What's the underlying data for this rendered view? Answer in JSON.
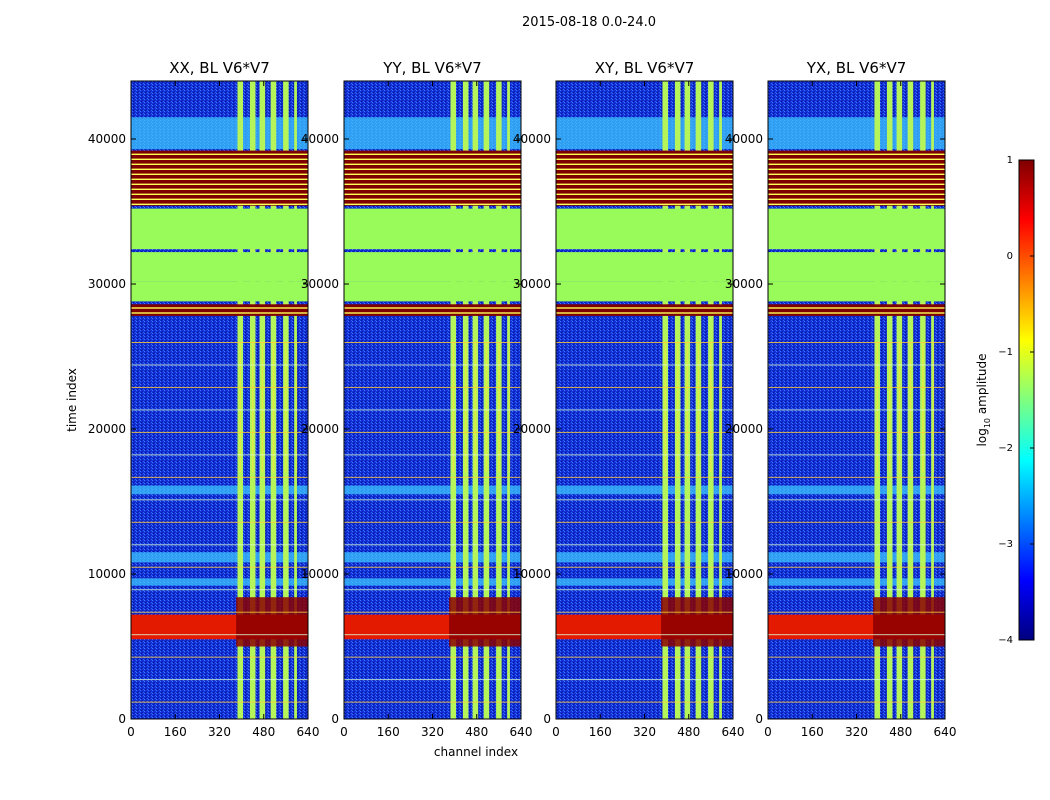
{
  "chart_data": {
    "type": "heatmap",
    "suptitle": "2015-08-18 0.0-24.0",
    "xlabel": "channel index",
    "ylabel": "time index",
    "xlim": [
      0,
      640
    ],
    "ylim": [
      0,
      44000
    ],
    "xticks": [
      "0",
      "160",
      "320",
      "480",
      "640"
    ],
    "xtick_values": [
      0,
      160,
      320,
      480,
      640
    ],
    "yticks": [
      "0",
      "10000",
      "20000",
      "30000",
      "40000"
    ],
    "ytick_values": [
      0,
      10000,
      20000,
      30000,
      40000
    ],
    "panels": [
      {
        "title": "XX, BL V6*V7",
        "id": "xx"
      },
      {
        "title": "YY, BL V6*V7",
        "id": "yy"
      },
      {
        "title": "XY, BL V6*V7",
        "id": "xy"
      },
      {
        "title": "YX, BL V6*V7",
        "id": "yx"
      }
    ],
    "colorbar": {
      "label": "log10 amplitude",
      "label_main": "log",
      "label_sub": "10",
      "label_rest": " amplitude",
      "range": [
        -4,
        1
      ],
      "ticks": [
        "1",
        "0",
        "−1",
        "−2",
        "−3",
        "−4"
      ],
      "tick_values": [
        1,
        0,
        -1,
        -2,
        -3,
        -4
      ],
      "colors": [
        "#00007f",
        "#0000ff",
        "#007fff",
        "#00ffff",
        "#7fff7f",
        "#ffff00",
        "#ff7f00",
        "#ff0000",
        "#7f0000"
      ]
    },
    "bands": {
      "flagged_green_ranges": [
        [
          28800,
          30200
        ],
        [
          30200,
          32200
        ],
        [
          32400,
          35200
        ]
      ],
      "dark_red_stripe_ranges": [
        [
          35400,
          39200
        ],
        [
          27800,
          28600
        ]
      ],
      "rfi_channel_ranges": [
        [
          385,
          405
        ],
        [
          430,
          450
        ],
        [
          465,
          485
        ],
        [
          505,
          525
        ],
        [
          550,
          570
        ],
        [
          590,
          600
        ]
      ],
      "bright_time_ranges": [
        [
          5500,
          7200
        ]
      ],
      "light_time_ranges": [
        [
          39300,
          41500
        ],
        [
          9200,
          9700
        ],
        [
          10800,
          11500
        ],
        [
          15500,
          16100
        ]
      ]
    }
  }
}
